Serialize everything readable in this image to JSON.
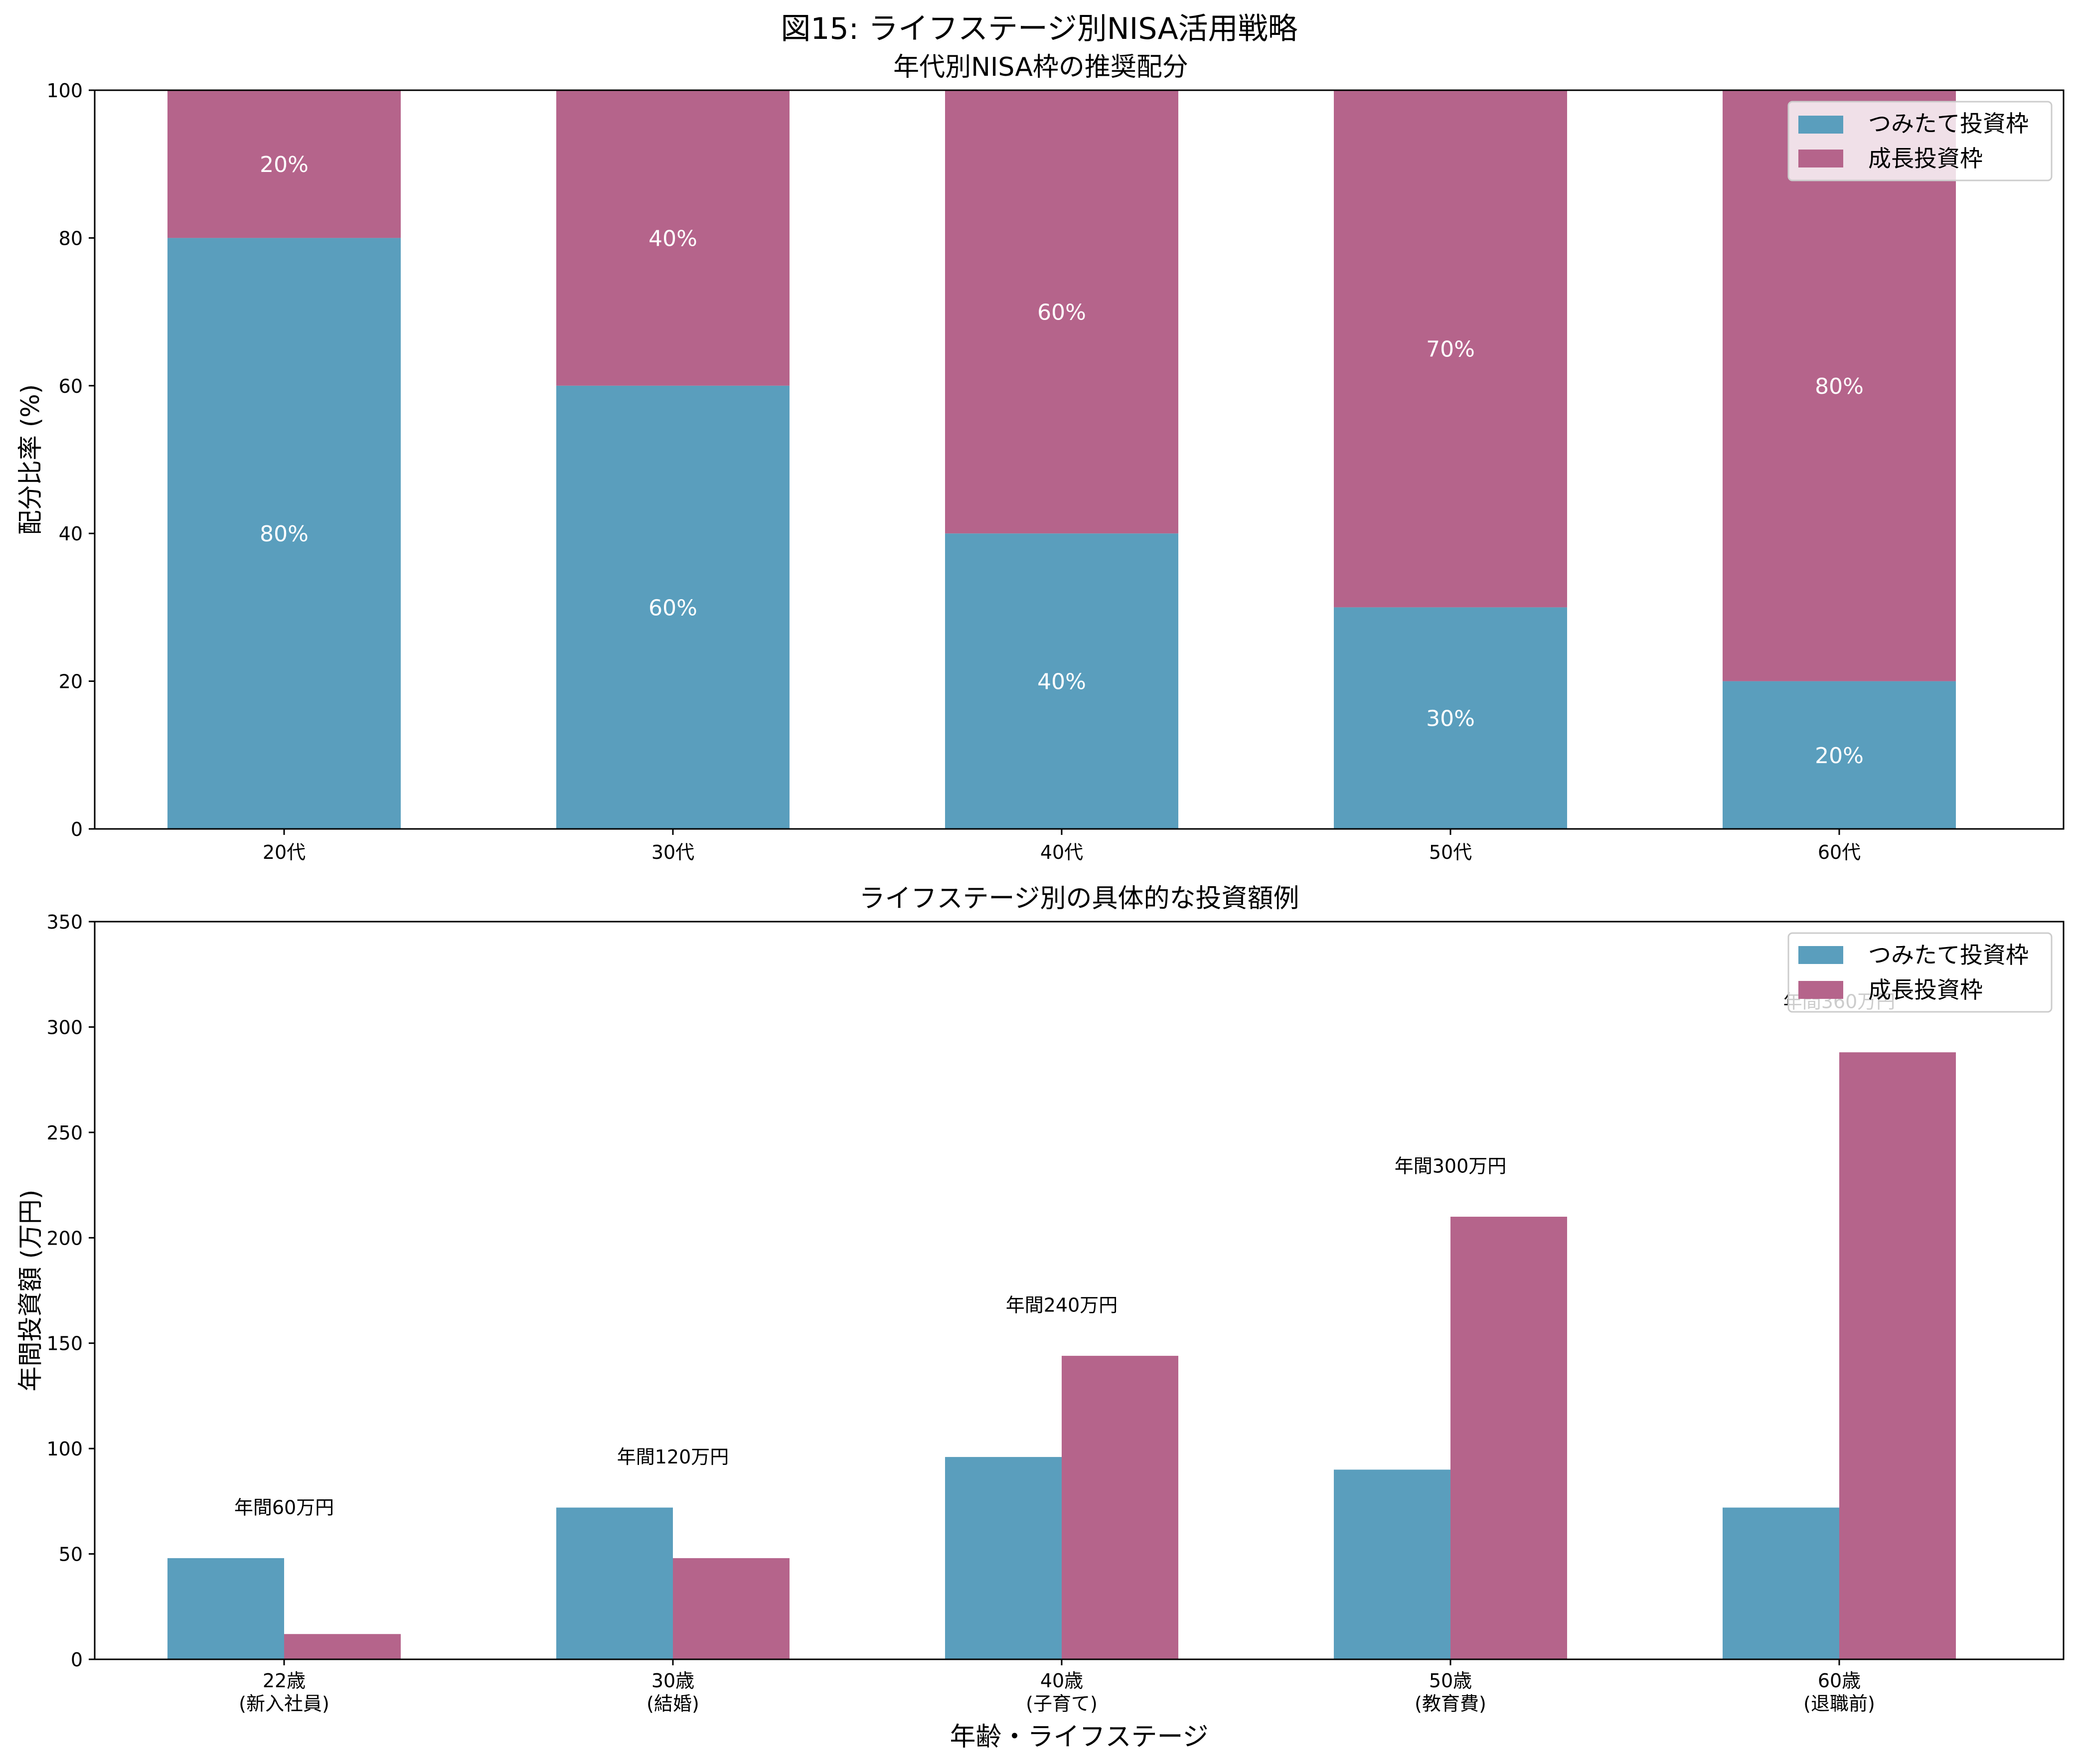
{
  "figure_title": "図15: ライフステージ別NISA活用戦略",
  "colors": {
    "tsumitate": "#5a9ebd",
    "seichou": "#b5648b",
    "axis": "#000000"
  },
  "chart_data": [
    {
      "type": "bar",
      "stacked": true,
      "title": "年代別NISA枠の推奨配分",
      "xlabel": "",
      "ylabel": "配分比率 (%)",
      "ylim": [
        0,
        100
      ],
      "yticks": [
        0,
        20,
        40,
        60,
        80,
        100
      ],
      "categories": [
        "20代",
        "30代",
        "40代",
        "50代",
        "60代"
      ],
      "series": [
        {
          "name": "つみたて投資枠",
          "values": [
            80,
            60,
            40,
            30,
            20
          ],
          "labels": [
            "80%",
            "60%",
            "40%",
            "30%",
            "20%"
          ]
        },
        {
          "name": "成長投資枠",
          "values": [
            20,
            40,
            60,
            70,
            80
          ],
          "labels": [
            "20%",
            "40%",
            "60%",
            "70%",
            "80%"
          ]
        }
      ],
      "legend": "top-right"
    },
    {
      "type": "bar",
      "stacked": false,
      "title": "ライフステージ別の具体的な投資額例",
      "xlabel": "年齢・ライフステージ",
      "ylabel": "年間投資額 (万円)",
      "ylim": [
        0,
        350
      ],
      "yticks": [
        0,
        50,
        100,
        150,
        200,
        250,
        300,
        350
      ],
      "categories": [
        [
          "22歳",
          "(新入社員)"
        ],
        [
          "30歳",
          "(結婚)"
        ],
        [
          "40歳",
          "(子育て)"
        ],
        [
          "50歳",
          "(教育費)"
        ],
        [
          "60歳",
          "(退職前)"
        ]
      ],
      "series": [
        {
          "name": "つみたて投資枠",
          "values": [
            48,
            72,
            96,
            90,
            72
          ]
        },
        {
          "name": "成長投資枠",
          "values": [
            12,
            48,
            144,
            210,
            288
          ]
        }
      ],
      "annotations": [
        "年間60万円",
        "年間120万円",
        "年間240万円",
        "年間300万円",
        "年間360万円"
      ],
      "legend": "top-right"
    }
  ]
}
